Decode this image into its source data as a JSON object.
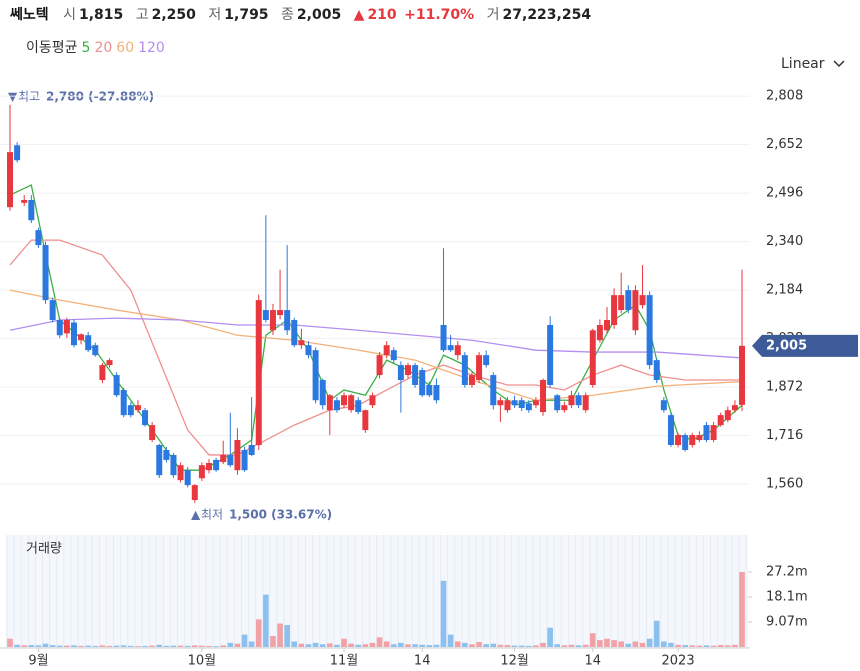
{
  "header": {
    "name": "쎄노텍",
    "open_label": "시",
    "open": "1,815",
    "high_label": "고",
    "high": "2,250",
    "low_label": "저",
    "low": "1,795",
    "close_label": "종",
    "close": "2,005",
    "arrow": "▲",
    "change": "210",
    "change_pct": "+11.70%",
    "volume_label": "거",
    "volume": "27,223,254",
    "scale": "Linear"
  },
  "chart_data": {
    "type": "candlestick",
    "ma_label": "이동평균",
    "volume_label": "거래량",
    "up_color": "#e8373e",
    "down_color": "#2a78e0",
    "vol_up_color": "#f2a1a6",
    "vol_down_color": "#8cc0ef",
    "ylim": [
      1493,
      2860
    ],
    "yticks": [
      {
        "value": 2808,
        "label": "2,808"
      },
      {
        "value": 2652,
        "label": "2,652"
      },
      {
        "value": 2496,
        "label": "2,496"
      },
      {
        "value": 2340,
        "label": "2,340"
      },
      {
        "value": 2184,
        "label": "2,184"
      },
      {
        "value": 2028,
        "label": "2,028"
      },
      {
        "value": 1872,
        "label": "1,872"
      },
      {
        "value": 1716,
        "label": "1,716"
      },
      {
        "value": 1560,
        "label": "1,560"
      }
    ],
    "grid": true,
    "last_price": {
      "value": 2005,
      "label": "2,005"
    },
    "max_annotation": {
      "label": "최고",
      "text": "2,780 (-27.88%)"
    },
    "min_annotation": {
      "label": "최저",
      "text": "1,500 (33.67%)"
    },
    "volume_ylim": [
      0,
      40.6
    ],
    "volume_yticks": [
      {
        "value": 27.2,
        "label": "27.2m"
      },
      {
        "value": 18.1,
        "label": "18.1m"
      },
      {
        "value": 9.07,
        "label": "9.07m"
      }
    ],
    "categories": [
      null,
      null,
      null,
      null,
      "9월",
      null,
      null,
      null,
      null,
      null,
      null,
      null,
      null,
      null,
      null,
      null,
      null,
      null,
      null,
      null,
      null,
      null,
      null,
      null,
      null,
      null,
      null,
      "10월",
      null,
      null,
      null,
      null,
      null,
      null,
      null,
      null,
      null,
      null,
      null,
      null,
      null,
      null,
      null,
      null,
      null,
      null,
      null,
      "11월",
      null,
      null,
      null,
      null,
      null,
      null,
      null,
      null,
      null,
      null,
      "14",
      null,
      null,
      null,
      null,
      null,
      null,
      null,
      null,
      null,
      null,
      null,
      null,
      "12월",
      null,
      null,
      null,
      null,
      null,
      null,
      null,
      null,
      null,
      null,
      "14",
      null,
      null,
      null,
      null,
      null,
      null,
      null,
      null,
      null,
      null,
      null,
      "2023",
      null,
      null,
      null,
      null,
      null,
      null,
      null,
      null,
      null
    ],
    "candles": [
      [
        2451,
        2780,
        2440,
        2628
      ],
      [
        2650,
        2660,
        2595,
        2602
      ],
      [
        2465,
        2490,
        2455,
        2474
      ],
      [
        2474,
        2490,
        2400,
        2409
      ],
      [
        2377,
        2385,
        2320,
        2329
      ],
      [
        2329,
        2340,
        2140,
        2152
      ],
      [
        2152,
        2160,
        2080,
        2088
      ],
      [
        2088,
        2095,
        2030,
        2039
      ],
      [
        2045,
        2095,
        2030,
        2088
      ],
      [
        2080,
        2090,
        2000,
        2007
      ],
      [
        2023,
        2045,
        2010,
        2042
      ],
      [
        2039,
        2050,
        1985,
        1991
      ],
      [
        2007,
        2015,
        1970,
        1975
      ],
      [
        1895,
        1950,
        1885,
        1943
      ],
      [
        1943,
        1965,
        1935,
        1959
      ],
      [
        1911,
        1920,
        1840,
        1846
      ],
      [
        1863,
        1870,
        1775,
        1782
      ],
      [
        1814,
        1825,
        1775,
        1782
      ],
      [
        1798,
        1830,
        1790,
        1814
      ],
      [
        1798,
        1805,
        1745,
        1750
      ],
      [
        1702,
        1760,
        1695,
        1750
      ],
      [
        1686,
        1690,
        1580,
        1589
      ],
      [
        1670,
        1680,
        1630,
        1638
      ],
      [
        1654,
        1660,
        1580,
        1589
      ],
      [
        1573,
        1630,
        1565,
        1621
      ],
      [
        1605,
        1615,
        1550,
        1557
      ],
      [
        1509,
        1560,
        1500,
        1557
      ],
      [
        1579,
        1630,
        1570,
        1621
      ],
      [
        1605,
        1640,
        1595,
        1628
      ],
      [
        1638,
        1645,
        1600,
        1605
      ],
      [
        1631,
        1700,
        1625,
        1654
      ],
      [
        1654,
        1790,
        1615,
        1621
      ],
      [
        1605,
        1740,
        1590,
        1702
      ],
      [
        1670,
        1680,
        1600,
        1605
      ],
      [
        1686,
        1840,
        1650,
        1654
      ],
      [
        1686,
        2170,
        1670,
        2152
      ],
      [
        2120,
        2425,
        2080,
        2088
      ],
      [
        2055,
        2140,
        2040,
        2120
      ],
      [
        2104,
        2250,
        2090,
        2120
      ],
      [
        2120,
        2329,
        2040,
        2055
      ],
      [
        2088,
        2095,
        2000,
        2007
      ],
      [
        2007,
        2060,
        1995,
        2023
      ],
      [
        2007,
        2020,
        1965,
        1975
      ],
      [
        1991,
        2000,
        1820,
        1830
      ],
      [
        1895,
        1900,
        1800,
        1814
      ],
      [
        1798,
        1850,
        1718,
        1846
      ],
      [
        1830,
        1840,
        1790,
        1798
      ],
      [
        1814,
        1855,
        1805,
        1846
      ],
      [
        1798,
        1850,
        1790,
        1846
      ],
      [
        1830,
        1840,
        1785,
        1792
      ],
      [
        1734,
        1800,
        1725,
        1798
      ],
      [
        1814,
        1855,
        1805,
        1846
      ],
      [
        1911,
        1985,
        1900,
        1975
      ],
      [
        1975,
        2020,
        1965,
        2007
      ],
      [
        1991,
        2000,
        1950,
        1959
      ],
      [
        1943,
        1955,
        1790,
        1895
      ],
      [
        1911,
        1950,
        1900,
        1943
      ],
      [
        1943,
        1950,
        1870,
        1879
      ],
      [
        1927,
        1935,
        1840,
        1846
      ],
      [
        1879,
        1890,
        1840,
        1846
      ],
      [
        1879,
        1900,
        1820,
        1830
      ],
      [
        2072,
        2319,
        1985,
        1991
      ],
      [
        2007,
        2040,
        1985,
        1991
      ],
      [
        1975,
        2020,
        1960,
        2007
      ],
      [
        1975,
        1985,
        1870,
        1879
      ],
      [
        1879,
        1920,
        1870,
        1911
      ],
      [
        1895,
        1985,
        1885,
        1975
      ],
      [
        1975,
        1990,
        1935,
        1943
      ],
      [
        1911,
        1920,
        1800,
        1814
      ],
      [
        1814,
        1840,
        1760,
        1830
      ],
      [
        1798,
        1840,
        1790,
        1830
      ],
      [
        1830,
        1845,
        1805,
        1814
      ],
      [
        1830,
        1840,
        1795,
        1805
      ],
      [
        1820,
        1830,
        1790,
        1798
      ],
      [
        1814,
        1840,
        1805,
        1830
      ],
      [
        1792,
        1900,
        1780,
        1895
      ],
      [
        2072,
        2100,
        1870,
        1879
      ],
      [
        1846,
        1850,
        1790,
        1798
      ],
      [
        1798,
        1825,
        1790,
        1814
      ],
      [
        1814,
        1860,
        1805,
        1846
      ],
      [
        1846,
        1855,
        1805,
        1814
      ],
      [
        1798,
        1855,
        1790,
        1846
      ],
      [
        1879,
        2060,
        1870,
        2055
      ],
      [
        2023,
        2090,
        2015,
        2072
      ],
      [
        2055,
        2130,
        2045,
        2088
      ],
      [
        2072,
        2190,
        2060,
        2168
      ],
      [
        2120,
        2240,
        2110,
        2168
      ],
      [
        2184,
        2200,
        2110,
        2120
      ],
      [
        2055,
        2200,
        2040,
        2184
      ],
      [
        2136,
        2265,
        2125,
        2168
      ],
      [
        2168,
        2180,
        1930,
        1943
      ],
      [
        1959,
        1965,
        1885,
        1895
      ],
      [
        1830,
        1840,
        1790,
        1798
      ],
      [
        1782,
        1790,
        1680,
        1686
      ],
      [
        1686,
        1725,
        1678,
        1718
      ],
      [
        1718,
        1725,
        1665,
        1670
      ],
      [
        1686,
        1725,
        1678,
        1718
      ],
      [
        1702,
        1730,
        1695,
        1718
      ],
      [
        1750,
        1760,
        1695,
        1702
      ],
      [
        1702,
        1760,
        1695,
        1750
      ],
      [
        1750,
        1790,
        1745,
        1782
      ],
      [
        1766,
        1810,
        1760,
        1798
      ],
      [
        1798,
        1830,
        1790,
        1814
      ],
      [
        1815,
        2250,
        1795,
        2005
      ]
    ],
    "volumes": [
      3,
      0.8,
      0.6,
      0.7,
      0.6,
      1.2,
      0.7,
      0.5,
      0.5,
      0.6,
      0.4,
      0.5,
      0.4,
      0.6,
      0.4,
      0.5,
      0.6,
      0.4,
      0.3,
      0.4,
      0.5,
      0.8,
      0.4,
      0.5,
      0.5,
      0.4,
      0.6,
      0.5,
      0.4,
      0.3,
      0.6,
      1.5,
      1.2,
      4.5,
      2,
      10,
      19,
      4,
      8.5,
      8,
      2,
      1.2,
      1,
      1.5,
      1,
      1.3,
      0.8,
      3,
      1.2,
      0.8,
      1,
      1.5,
      3.5,
      2,
      1,
      1.5,
      1,
      1,
      0.8,
      0.7,
      0.8,
      24,
      4.5,
      2,
      1.5,
      1,
      1.8,
      1,
      1.2,
      0.8,
      0.7,
      0.5,
      0.5,
      0.4,
      0.6,
      1.5,
      7,
      1,
      0.6,
      0.8,
      0.6,
      0.8,
      5,
      2.5,
      3,
      2.5,
      2,
      1.2,
      2,
      1.5,
      3,
      9.5,
      2,
      1.5,
      0.8,
      0.7,
      0.6,
      0.5,
      0.6,
      0.5,
      0.7,
      0.6,
      0.8,
      27.2
    ],
    "series": [
      {
        "name": "5",
        "color": "#3cb043",
        "x": [
          0,
          3,
          5,
          7,
          12,
          17,
          21,
          24,
          27,
          31,
          34,
          36,
          39,
          42,
          45,
          47,
          50,
          53,
          56,
          59,
          61,
          64,
          68,
          71,
          74,
          77,
          79,
          82,
          85,
          88,
          90,
          92,
          94,
          96,
          99,
          103
        ],
        "values": [
          2490,
          2522,
          2300,
          2088,
          1991,
          1830,
          1702,
          1605,
          1605,
          1654,
          1702,
          2039,
          2088,
          1991,
          1830,
          1863,
          1846,
          1959,
          1927,
          1879,
          1975,
          1943,
          1863,
          1814,
          1830,
          1830,
          1830,
          1959,
          2088,
          2136,
          2055,
          1863,
          1718,
          1702,
          1734,
          1814
        ]
      },
      {
        "name": "20",
        "color": "#ef8f8f",
        "x": [
          0,
          3,
          7,
          13,
          17,
          21,
          25,
          28,
          32,
          36,
          40,
          45,
          49,
          53,
          57,
          61,
          65,
          70,
          74,
          78,
          82,
          86,
          90,
          95,
          103
        ],
        "values": [
          2265,
          2345,
          2345,
          2297,
          2184,
          1959,
          1734,
          1654,
          1654,
          1702,
          1750,
          1798,
          1814,
          1863,
          1911,
          1943,
          1911,
          1879,
          1879,
          1863,
          1911,
          1943,
          1911,
          1895,
          1895
        ]
      },
      {
        "name": "60",
        "color": "#f2b27a",
        "x": [
          0,
          7,
          15,
          24,
          32,
          40,
          49,
          57,
          65,
          74,
          82,
          91,
          103
        ],
        "values": [
          2184,
          2152,
          2120,
          2088,
          2039,
          2023,
          1991,
          1959,
          1895,
          1830,
          1846,
          1875,
          1890
        ]
      },
      {
        "name": "120",
        "color": "#b48ef0",
        "x": [
          0,
          7,
          15,
          24,
          32,
          40,
          49,
          57,
          65,
          74,
          82,
          91,
          103
        ],
        "values": [
          2055,
          2088,
          2094,
          2088,
          2072,
          2072,
          2055,
          2039,
          2023,
          1991,
          1985,
          1985,
          1966
        ]
      }
    ]
  }
}
